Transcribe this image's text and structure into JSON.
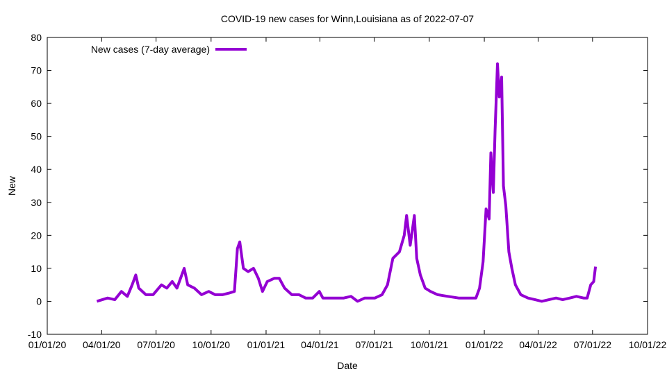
{
  "chart_data": {
    "type": "line",
    "title": "COVID-19 new cases for Winn,Louisiana as of 2022-07-07",
    "xlabel": "Date",
    "ylabel": "New",
    "xlim": [
      "2020-01-01",
      "2022-10-01"
    ],
    "ylim": [
      -10,
      80
    ],
    "xticks": [
      {
        "date": "2020-01-01",
        "label": "01/01/20"
      },
      {
        "date": "2020-04-01",
        "label": "04/01/20"
      },
      {
        "date": "2020-07-01",
        "label": "07/01/20"
      },
      {
        "date": "2020-10-01",
        "label": "10/01/20"
      },
      {
        "date": "2021-01-01",
        "label": "01/01/21"
      },
      {
        "date": "2021-04-01",
        "label": "04/01/21"
      },
      {
        "date": "2021-07-01",
        "label": "07/01/21"
      },
      {
        "date": "2021-10-01",
        "label": "10/01/21"
      },
      {
        "date": "2022-01-01",
        "label": "01/01/22"
      },
      {
        "date": "2022-04-01",
        "label": "04/01/22"
      },
      {
        "date": "2022-07-01",
        "label": "07/01/22"
      },
      {
        "date": "2022-10-01",
        "label": "10/01/22"
      }
    ],
    "yticks": [
      -10,
      0,
      10,
      20,
      30,
      40,
      50,
      60,
      70,
      80
    ],
    "grid": false,
    "legend_position": "top-left",
    "series": [
      {
        "name": "New cases (7-day average)",
        "color": "#9400d3",
        "x": [
          "2020-03-24",
          "2020-04-11",
          "2020-04-23",
          "2020-05-04",
          "2020-05-14",
          "2020-05-22",
          "2020-05-28",
          "2020-06-02",
          "2020-06-14",
          "2020-06-26",
          "2020-07-10",
          "2020-07-19",
          "2020-07-28",
          "2020-08-05",
          "2020-08-17",
          "2020-08-23",
          "2020-09-03",
          "2020-09-15",
          "2020-09-27",
          "2020-10-08",
          "2020-10-20",
          "2020-10-31",
          "2020-11-09",
          "2020-11-14",
          "2020-11-18",
          "2020-11-24",
          "2020-12-02",
          "2020-12-11",
          "2020-12-19",
          "2020-12-26",
          "2021-01-03",
          "2021-01-15",
          "2021-01-23",
          "2021-02-01",
          "2021-02-13",
          "2021-02-25",
          "2021-03-08",
          "2021-03-20",
          "2021-03-31",
          "2021-04-06",
          "2021-04-24",
          "2021-05-11",
          "2021-05-23",
          "2021-06-03",
          "2021-06-15",
          "2021-07-02",
          "2021-07-14",
          "2021-07-23",
          "2021-08-01",
          "2021-08-12",
          "2021-08-20",
          "2021-08-24",
          "2021-08-30",
          "2021-09-06",
          "2021-09-10",
          "2021-09-16",
          "2021-09-24",
          "2021-10-03",
          "2021-10-15",
          "2021-11-01",
          "2021-11-19",
          "2021-12-06",
          "2021-12-18",
          "2021-12-24",
          "2021-12-30",
          "2022-01-04",
          "2022-01-09",
          "2022-01-12",
          "2022-01-16",
          "2022-01-19",
          "2022-01-23",
          "2022-01-26",
          "2022-01-30",
          "2022-02-02",
          "2022-02-06",
          "2022-02-11",
          "2022-02-16",
          "2022-02-22",
          "2022-03-03",
          "2022-03-15",
          "2022-03-27",
          "2022-04-07",
          "2022-04-19",
          "2022-05-01",
          "2022-05-12",
          "2022-05-24",
          "2022-06-04",
          "2022-06-16",
          "2022-06-22",
          "2022-06-28",
          "2022-07-03",
          "2022-07-06"
        ],
        "values": [
          0,
          1,
          0.5,
          3,
          1.5,
          5,
          8,
          4,
          2,
          2,
          5,
          4,
          6,
          4,
          10,
          5,
          4,
          2,
          3,
          2,
          2,
          2.5,
          3,
          16,
          18,
          10,
          9,
          10,
          7,
          3,
          6,
          7,
          7,
          4,
          2,
          2,
          1,
          1,
          3,
          1,
          1,
          1,
          1.5,
          0,
          1,
          1,
          2,
          5,
          13,
          15,
          20,
          26,
          17,
          26,
          13,
          8,
          4,
          3,
          2,
          1.5,
          1,
          1,
          1,
          4,
          12,
          28,
          25,
          45,
          33,
          52,
          72,
          62,
          68,
          35,
          29,
          15,
          10,
          5,
          2,
          1,
          0.5,
          0,
          0.5,
          1,
          0.5,
          1,
          1.5,
          1,
          1,
          5,
          6,
          10.5
        ]
      }
    ]
  }
}
